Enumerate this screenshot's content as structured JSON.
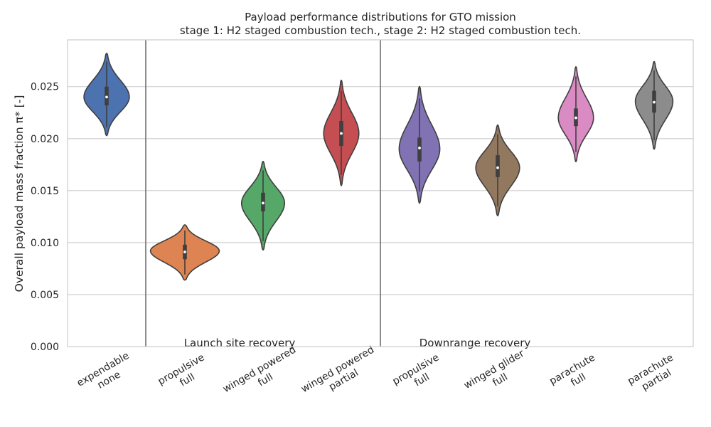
{
  "chart_data": {
    "type": "violin",
    "title_line1": "Payload performance distributions for GTO mission",
    "title_line2": "stage 1: H2 staged combustion tech., stage 2: H2 staged combustion tech.",
    "ylabel": "Overall payload mass fraction π* [-]",
    "xlabel": "",
    "ylim": [
      0.0,
      0.0295
    ],
    "yticks": [
      0.0,
      0.005,
      0.01,
      0.015,
      0.02,
      0.025
    ],
    "ytick_labels": [
      "0.000",
      "0.005",
      "0.010",
      "0.015",
      "0.020",
      "0.025"
    ],
    "grid": true,
    "group_labels": [
      "Launch site recovery",
      "Downrange recovery"
    ],
    "categories": [
      {
        "line1": "expendable",
        "line2": "none",
        "color": "#4c72b0",
        "min": 0.0203,
        "max": 0.0282,
        "mode": 0.024,
        "width": 0.58,
        "q1": 0.0232,
        "median": 0.024,
        "q3": 0.025
      },
      {
        "line1": "propulsive",
        "line2": "full",
        "color": "#dd8452",
        "min": 0.0064,
        "max": 0.0117,
        "mode": 0.0092,
        "width": 0.88,
        "q1": 0.0084,
        "median": 0.0091,
        "q3": 0.0098
      },
      {
        "line1": "winged powered",
        "line2": "full",
        "color": "#55a868",
        "min": 0.0093,
        "max": 0.0178,
        "mode": 0.0138,
        "width": 0.55,
        "q1": 0.013,
        "median": 0.0138,
        "q3": 0.0148
      },
      {
        "line1": "winged powered",
        "line2": "partial",
        "color": "#c44e52",
        "min": 0.0155,
        "max": 0.0256,
        "mode": 0.0205,
        "width": 0.45,
        "q1": 0.0193,
        "median": 0.0205,
        "q3": 0.0217
      },
      {
        "line1": "propulsive",
        "line2": "full",
        "color": "#8172b3",
        "min": 0.0138,
        "max": 0.025,
        "mode": 0.019,
        "width": 0.52,
        "q1": 0.0178,
        "median": 0.0191,
        "q3": 0.0201
      },
      {
        "line1": "winged glider",
        "line2": "full",
        "color": "#937860",
        "min": 0.0126,
        "max": 0.0213,
        "mode": 0.0172,
        "width": 0.56,
        "q1": 0.0163,
        "median": 0.0172,
        "q3": 0.0184
      },
      {
        "line1": "parachute",
        "line2": "full",
        "color": "#da8bc3",
        "min": 0.0178,
        "max": 0.0269,
        "mode": 0.022,
        "width": 0.45,
        "q1": 0.0212,
        "median": 0.022,
        "q3": 0.0229
      },
      {
        "line1": "parachute",
        "line2": "partial",
        "color": "#8c8c8c",
        "min": 0.019,
        "max": 0.0274,
        "mode": 0.0236,
        "width": 0.48,
        "q1": 0.0225,
        "median": 0.0235,
        "q3": 0.0246
      }
    ]
  }
}
